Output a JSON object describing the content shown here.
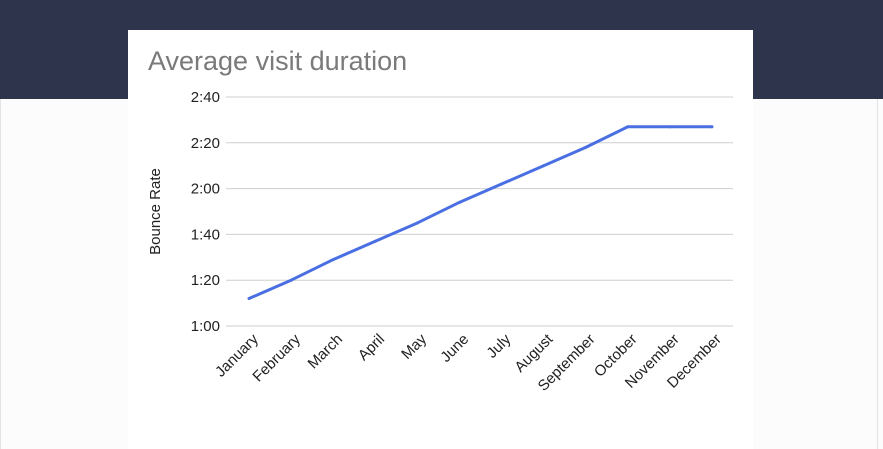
{
  "title": "Average visit duration",
  "colors": {
    "header_band": "#2f344d",
    "line": "#4a6fe3",
    "gridline": "#cfcfcf",
    "title": "#7a7a7a"
  },
  "chart_data": {
    "type": "line",
    "title": "Average visit duration",
    "xlabel": "",
    "ylabel": "Bounce Rate",
    "y_unit": "mm:ss",
    "categories": [
      "January",
      "February",
      "March",
      "April",
      "May",
      "June",
      "July",
      "August",
      "September",
      "October",
      "November",
      "December"
    ],
    "ylim": [
      "1:00",
      "2:40"
    ],
    "y_ticks": [
      "1:00",
      "1:20",
      "1:40",
      "2:00",
      "2:20",
      "2:40"
    ],
    "grid": true,
    "series": [
      {
        "values": [
          "1:12",
          "1:20",
          "1:29",
          "1:37",
          "1:45",
          "1:54",
          "2:02",
          "2:10",
          "2:18",
          "2:27",
          "2:27",
          "2:27"
        ]
      }
    ]
  }
}
